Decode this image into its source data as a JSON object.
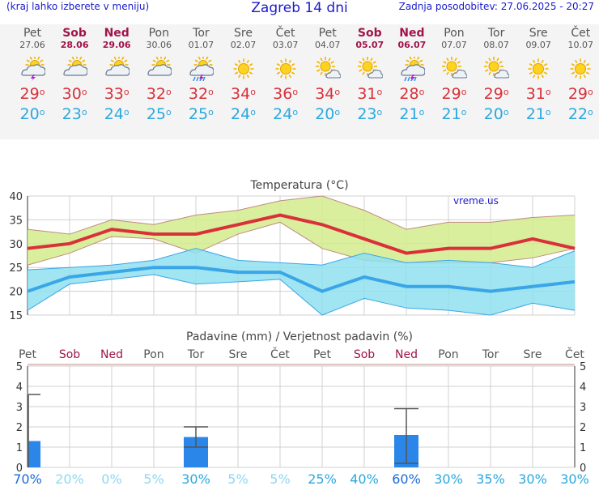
{
  "header": {
    "left_note": "(kraj lahko izberete v meniju)",
    "title": "Zagreb 14 dni",
    "updated": "Zadnja posodobitev: 27.06.2025 - 20:27"
  },
  "days": [
    {
      "name": "Pet",
      "date": "27.06",
      "weekend": false,
      "icon": "sun-cloud-lightning-icon",
      "tmax": "29",
      "tmin": "20",
      "precip_prob": "70%"
    },
    {
      "name": "Sob",
      "date": "28.06",
      "weekend": true,
      "icon": "sun-cloud-icon",
      "tmax": "30",
      "tmin": "23",
      "precip_prob": "20%"
    },
    {
      "name": "Ned",
      "date": "29.06",
      "weekend": true,
      "icon": "sun-cloud-icon",
      "tmax": "33",
      "tmin": "24",
      "precip_prob": "0%"
    },
    {
      "name": "Pon",
      "date": "30.06",
      "weekend": false,
      "icon": "sun-cloud-icon",
      "tmax": "32",
      "tmin": "25",
      "precip_prob": "5%"
    },
    {
      "name": "Tor",
      "date": "01.07",
      "weekend": false,
      "icon": "sun-cloud-rain-lightning-icon",
      "tmax": "32",
      "tmin": "25",
      "precip_prob": "30%"
    },
    {
      "name": "Sre",
      "date": "02.07",
      "weekend": false,
      "icon": "sun-icon",
      "tmax": "34",
      "tmin": "24",
      "precip_prob": "5%"
    },
    {
      "name": "Čet",
      "date": "03.07",
      "weekend": false,
      "icon": "sun-icon",
      "tmax": "36",
      "tmin": "24",
      "precip_prob": "5%"
    },
    {
      "name": "Pet",
      "date": "04.07",
      "weekend": false,
      "icon": "sun-small-cloud-icon",
      "tmax": "34",
      "tmin": "20",
      "precip_prob": "25%"
    },
    {
      "name": "Sob",
      "date": "05.07",
      "weekend": true,
      "icon": "sun-small-cloud-icon",
      "tmax": "31",
      "tmin": "23",
      "precip_prob": "40%"
    },
    {
      "name": "Ned",
      "date": "06.07",
      "weekend": true,
      "icon": "sun-cloud-rain-lightning-icon",
      "tmax": "28",
      "tmin": "21",
      "precip_prob": "60%"
    },
    {
      "name": "Pon",
      "date": "07.07",
      "weekend": false,
      "icon": "sun-small-cloud-icon",
      "tmax": "29",
      "tmin": "21",
      "precip_prob": "30%"
    },
    {
      "name": "Tor",
      "date": "08.07",
      "weekend": false,
      "icon": "sun-small-cloud-icon",
      "tmax": "29",
      "tmin": "20",
      "precip_prob": "35%"
    },
    {
      "name": "Sre",
      "date": "09.07",
      "weekend": false,
      "icon": "sun-icon",
      "tmax": "31",
      "tmin": "21",
      "precip_prob": "30%"
    },
    {
      "name": "Čet",
      "date": "10.07",
      "weekend": false,
      "icon": "sun-icon",
      "tmax": "29",
      "tmin": "22",
      "precip_prob": "30%"
    }
  ],
  "colors": {
    "max_line": "#d9303a",
    "min_line": "#3aa6e8",
    "max_band": "#d4ec8c",
    "min_band": "#8fe0ee",
    "bar": "#2a86e8",
    "weekend": "#a0144a",
    "link": "#1a1acc",
    "prob_high": "#1a6ad8",
    "prob_low": "#8fd8f0"
  },
  "chart_data": [
    {
      "type": "line",
      "title": "Temperatura (°C)",
      "watermark": "vreme.us",
      "x": [
        "27.06",
        "28.06",
        "29.06",
        "30.06",
        "01.07",
        "02.07",
        "03.07",
        "04.07",
        "05.07",
        "06.07",
        "07.07",
        "08.07",
        "09.07",
        "10.07"
      ],
      "ylim": [
        15,
        40
      ],
      "yticks": [
        15,
        20,
        25,
        30,
        35,
        40
      ],
      "series": [
        {
          "role": "max",
          "values": [
            29,
            30,
            33,
            32,
            32,
            34,
            36,
            34,
            31,
            28,
            29,
            29,
            31,
            29
          ]
        },
        {
          "role": "max_upper",
          "values": [
            33,
            32,
            35,
            34,
            36,
            37,
            39,
            40,
            37,
            33,
            34.5,
            34.5,
            35.5,
            36
          ]
        },
        {
          "role": "max_lower",
          "values": [
            25.5,
            28,
            31.5,
            31,
            28,
            32,
            34.5,
            29,
            26.5,
            26,
            26,
            26,
            27,
            29
          ]
        },
        {
          "role": "min",
          "values": [
            20,
            23,
            24,
            25,
            25,
            24,
            24,
            20,
            23,
            21,
            21,
            20,
            21,
            22
          ]
        },
        {
          "role": "min_upper",
          "values": [
            24.5,
            25,
            25.5,
            26.5,
            29,
            26.5,
            26,
            25.5,
            28,
            26,
            26.5,
            26,
            25,
            28.5
          ]
        },
        {
          "role": "min_lower",
          "values": [
            16,
            21.5,
            22.5,
            23.5,
            21.5,
            22,
            22.5,
            15,
            18.5,
            16.5,
            16,
            15,
            17.5,
            16
          ]
        }
      ]
    },
    {
      "type": "bar",
      "title": "Padavine (mm) / Verjetnost padavin (%)",
      "x": [
        "27.06",
        "28.06",
        "29.06",
        "30.06",
        "01.07",
        "02.07",
        "03.07",
        "04.07",
        "05.07",
        "06.07",
        "07.07",
        "08.07",
        "09.07",
        "10.07"
      ],
      "ylim": [
        0,
        5
      ],
      "yticks": [
        0,
        1,
        2,
        3,
        4,
        5
      ],
      "values": [
        1.3,
        0,
        0,
        0,
        1.5,
        0,
        0,
        0,
        0,
        1.6,
        0,
        0,
        0,
        0
      ],
      "error_high": [
        3.6,
        0,
        0,
        0,
        2.0,
        0,
        0,
        0,
        0,
        2.9,
        0,
        0,
        0,
        0
      ],
      "error_low": [
        0,
        0,
        0,
        0,
        1.0,
        0,
        0,
        0,
        0,
        0.2,
        0,
        0,
        0,
        0
      ]
    }
  ]
}
